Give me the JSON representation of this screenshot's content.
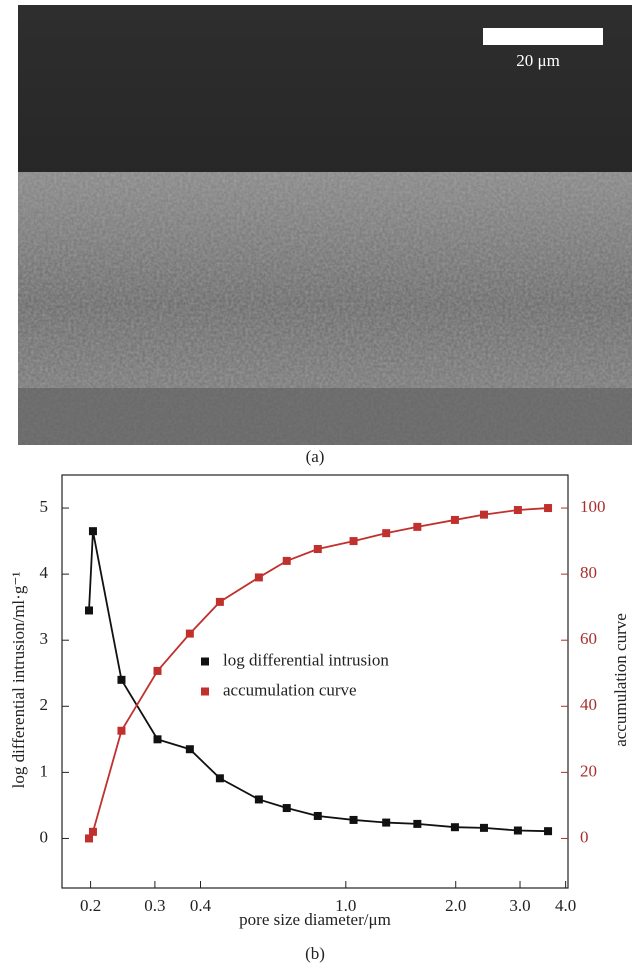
{
  "figure": {
    "scale_bar_label": "20 μm",
    "caption_a": "(a)",
    "caption_b": "(b)"
  },
  "chart_data": {
    "type": "line",
    "xlabel": "pore size diameter/μm",
    "ylabel": "log differential intrusion/ml·g⁻¹",
    "y2label": "accumulation curve",
    "xscale": "log",
    "xlim": [
      0.167,
      4.06
    ],
    "xticks": [
      0.2,
      0.3,
      0.4,
      {
        "value": 1,
        "label": "1.0"
      },
      {
        "value": 2,
        "label": "2.0"
      },
      {
        "value": 3,
        "label": "3.0"
      },
      {
        "value": 4,
        "label": "4.0"
      }
    ],
    "ylim": [
      -0.75,
      5.5
    ],
    "yticks": [
      0,
      1,
      2,
      3,
      4,
      5
    ],
    "y2lim": [
      -15,
      110
    ],
    "y2ticks": [
      0,
      20,
      40,
      60,
      80,
      100
    ],
    "y2_color": "#a8302c",
    "legend_position": "center-left",
    "x": [
      0.198,
      0.203,
      0.243,
      0.305,
      0.374,
      0.452,
      0.578,
      0.689,
      0.838,
      1.05,
      1.29,
      1.57,
      1.99,
      2.39,
      2.96,
      3.58
    ],
    "series": [
      {
        "name": "log differential intrusion",
        "color": "#111111",
        "axis": "y",
        "values": [
          3.45,
          4.65,
          2.4,
          1.5,
          1.35,
          0.91,
          0.59,
          0.46,
          0.34,
          0.28,
          0.24,
          0.22,
          0.17,
          0.16,
          0.12,
          0.11
        ]
      },
      {
        "name": "accumulation curve",
        "color": "#c0302c",
        "axis": "y2",
        "values": [
          0,
          2,
          32.6,
          50.7,
          62,
          71.6,
          79,
          84,
          87.6,
          90,
          92.4,
          94.3,
          96.4,
          98,
          99.4,
          100
        ]
      }
    ]
  }
}
